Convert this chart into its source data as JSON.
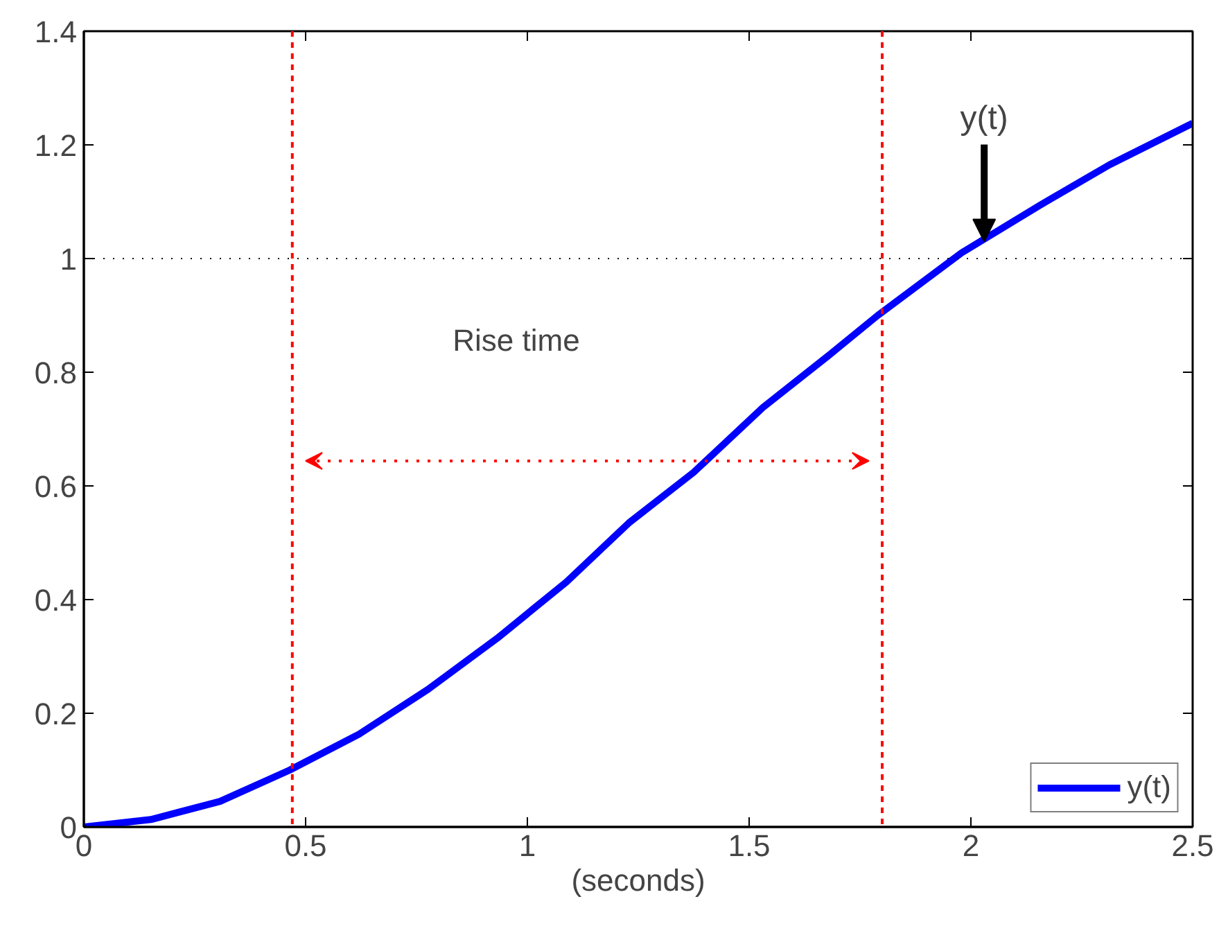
{
  "chart_data": {
    "type": "line",
    "xlabel": "(seconds)",
    "x": [
      0,
      0.151,
      0.307,
      0.464,
      0.62,
      0.776,
      0.932,
      1.088,
      1.229,
      1.375,
      1.531,
      1.677,
      1.79,
      1.979,
      2.156,
      2.3125,
      2.5
    ],
    "series": [
      {
        "name": "y(t)",
        "color": "#0000ff",
        "values": [
          0,
          0.013,
          0.045,
          0.1,
          0.163,
          0.242,
          0.332,
          0.431,
          0.535,
          0.624,
          0.738,
          0.828,
          0.9,
          1.01,
          1.094,
          1.165,
          1.238
        ]
      }
    ],
    "xlim": [
      0,
      2.5
    ],
    "xticks": [
      0,
      0.5,
      1,
      1.5,
      2,
      2.5
    ],
    "ylim": [
      0,
      1.4
    ],
    "yticks": [
      0,
      0.2,
      0.4,
      0.6,
      0.8,
      1,
      1.2,
      1.4
    ],
    "ref_lines": [
      {
        "axis": "y",
        "value": 1,
        "color": "#000000",
        "line_style": "dotted"
      },
      {
        "axis": "x",
        "value": 0.47,
        "color": "#ff0000",
        "line_style": "dashed"
      },
      {
        "axis": "x",
        "value": 1.8,
        "color": "#ff0000",
        "line_style": "dashed"
      }
    ],
    "annotations": [
      "Rise time",
      {
        "text": "y(t)",
        "x": 2.03,
        "y": 1.03
      }
    ],
    "grid": false,
    "legend": "bottom right",
    "line_style": "solid"
  }
}
